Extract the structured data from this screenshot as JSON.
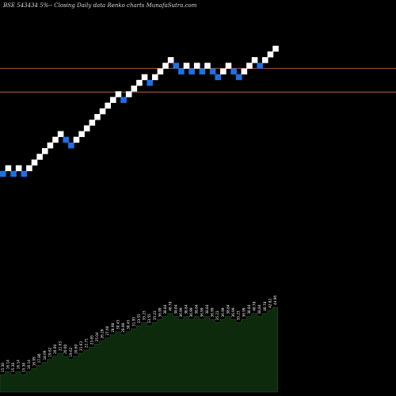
{
  "title": "BSE 543434  5%--  Closing Daily data  Renko  charts MunafaSutra.com",
  "colors": {
    "background": "#000000",
    "up_brick": "#ffffff",
    "down_brick": "#1f6fe5",
    "level_line": "#c0643a",
    "price_area": "#0d2a0d",
    "text": "#d9d9d9"
  },
  "chart_data": {
    "type": "renko",
    "brick_size": "5%",
    "bricks": [
      {
        "dir": "down",
        "price": 15.38
      },
      {
        "dir": "up",
        "price": 16.14
      },
      {
        "dir": "down",
        "price": 15.38
      },
      {
        "dir": "up",
        "price": 16.14
      },
      {
        "dir": "down",
        "price": 15.38
      },
      {
        "dir": "up",
        "price": 16.14
      },
      {
        "dir": "up",
        "price": 16.95
      },
      {
        "dir": "up",
        "price": 17.8
      },
      {
        "dir": "up",
        "price": 18.69
      },
      {
        "dir": "up",
        "price": 19.62
      },
      {
        "dir": "up",
        "price": 20.6
      },
      {
        "dir": "up",
        "price": 21.63
      },
      {
        "dir": "down",
        "price": 20.6
      },
      {
        "dir": "down",
        "price": 19.62
      },
      {
        "dir": "up",
        "price": 20.6
      },
      {
        "dir": "up",
        "price": 21.63
      },
      {
        "dir": "up",
        "price": 22.71
      },
      {
        "dir": "up",
        "price": 23.85
      },
      {
        "dir": "up",
        "price": 25.04
      },
      {
        "dir": "up",
        "price": 26.29
      },
      {
        "dir": "up",
        "price": 27.6
      },
      {
        "dir": "up",
        "price": 28.98
      },
      {
        "dir": "up",
        "price": 30.43
      },
      {
        "dir": "down",
        "price": 28.98
      },
      {
        "dir": "up",
        "price": 30.43
      },
      {
        "dir": "up",
        "price": 31.95
      },
      {
        "dir": "up",
        "price": 33.55
      },
      {
        "dir": "up",
        "price": 35.23
      },
      {
        "dir": "down",
        "price": 33.55
      },
      {
        "dir": "up",
        "price": 35.23
      },
      {
        "dir": "up",
        "price": 36.99
      },
      {
        "dir": "up",
        "price": 38.84
      },
      {
        "dir": "up",
        "price": 40.78
      },
      {
        "dir": "down",
        "price": 38.84
      },
      {
        "dir": "down",
        "price": 36.99
      },
      {
        "dir": "up",
        "price": 38.84
      },
      {
        "dir": "down",
        "price": 36.99
      },
      {
        "dir": "up",
        "price": 38.84
      },
      {
        "dir": "down",
        "price": 36.99
      },
      {
        "dir": "up",
        "price": 38.84
      },
      {
        "dir": "down",
        "price": 36.99
      },
      {
        "dir": "down",
        "price": 35.23
      },
      {
        "dir": "up",
        "price": 36.99
      },
      {
        "dir": "up",
        "price": 38.84
      },
      {
        "dir": "down",
        "price": 36.99
      },
      {
        "dir": "down",
        "price": 35.23
      },
      {
        "dir": "up",
        "price": 36.99
      },
      {
        "dir": "up",
        "price": 38.84
      },
      {
        "dir": "up",
        "price": 40.78
      },
      {
        "dir": "down",
        "price": 38.84
      },
      {
        "dir": "up",
        "price": 40.78
      },
      {
        "dir": "up",
        "price": 42.82
      },
      {
        "dir": "up",
        "price": 44.96
      }
    ],
    "horizontal_levels": [
      38.0,
      31.0
    ],
    "price_labels": [
      "15.38",
      "16.14",
      "15.38",
      "16.14",
      "15.38",
      "16.14",
      "16.95",
      "17.80",
      "18.69",
      "19.62",
      "20.60",
      "21.63",
      "20.60",
      "19.62",
      "20.60",
      "21.63",
      "22.71",
      "23.85",
      "25.04",
      "26.29",
      "27.60",
      "28.98",
      "30.43",
      "28.98",
      "30.43",
      "31.95",
      "33.55",
      "35.23",
      "33.55",
      "35.23",
      "36.99",
      "38.84",
      "40.78",
      "38.84",
      "36.99",
      "38.84",
      "36.99",
      "38.84",
      "36.99",
      "38.84",
      "36.99",
      "35.23",
      "36.99",
      "38.84",
      "36.99",
      "35.23",
      "36.99",
      "38.84",
      "40.78",
      "38.84",
      "40.78",
      "42.82",
      "44.96"
    ]
  }
}
